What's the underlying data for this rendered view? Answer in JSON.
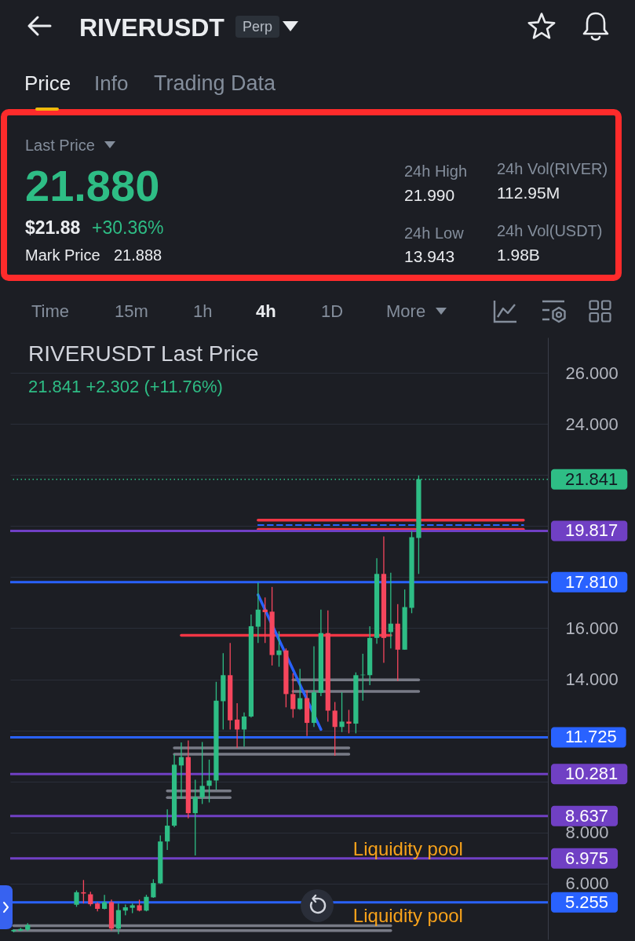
{
  "chart_data": [
    {
      "type": "other",
      "title": "RIVERUSDT",
      "annotations": [
        "Perp",
        "Price",
        "Info",
        "Trading Data",
        "Last Price",
        "21.880",
        "$21.88",
        "+30.36%",
        "Mark Price",
        "21.888",
        "24h High",
        "21.990",
        "24h Low",
        "13.943",
        "24h Vol(RIVER)",
        "112.95M",
        "24h Vol(USDT)",
        "1.98B",
        "Time",
        "15m",
        "1h",
        "4h",
        "1D",
        "More"
      ]
    },
    {
      "type": "candlestick",
      "title": "RIVERUSDT Last Price",
      "subtitle": "21.841  +2.302 (+11.76%)",
      "categories": [
        null,
        null,
        null,
        null,
        null,
        null,
        null,
        null,
        null,
        null,
        null,
        null,
        null,
        null,
        null,
        null,
        null,
        null,
        null,
        null,
        null,
        null,
        null,
        null,
        null,
        null,
        null,
        null,
        null,
        null,
        null,
        null,
        null,
        null,
        null,
        null,
        null,
        null,
        null,
        null,
        null,
        null,
        null,
        null,
        null,
        null,
        null,
        null,
        null,
        null,
        null,
        null,
        null,
        null,
        null,
        null,
        null,
        null,
        null,
        null,
        null,
        null,
        null,
        null,
        null,
        null,
        null,
        null,
        null,
        null,
        null,
        null,
        null,
        null,
        null,
        null,
        null
      ],
      "ohlc": [
        [
          4.12,
          4.2,
          4.08,
          4.17
        ],
        [
          4.15,
          4.25,
          4.12,
          4.21
        ],
        [
          4.18,
          4.44,
          4.13,
          4.36
        ],
        null,
        null,
        null,
        null,
        null,
        null,
        [
          5.16,
          5.72,
          5.08,
          5.65
        ],
        [
          5.65,
          6.13,
          5.21,
          5.6
        ],
        [
          5.57,
          5.67,
          5.11,
          5.18
        ],
        [
          5.21,
          5.26,
          4.9,
          5.0
        ],
        [
          5.0,
          5.55,
          4.98,
          5.26
        ],
        [
          5.26,
          5.36,
          4.15,
          4.22
        ],
        [
          4.22,
          5.21,
          4.01,
          4.95
        ],
        [
          4.93,
          5.17,
          4.75,
          5.06
        ],
        [
          5.04,
          5.21,
          4.83,
          5.14
        ],
        [
          5.14,
          5.36,
          4.9,
          4.93
        ],
        [
          4.93,
          5.55,
          4.9,
          5.47
        ],
        [
          5.45,
          6.16,
          5.43,
          6.01
        ],
        [
          6.0,
          7.88,
          5.98,
          7.64
        ],
        [
          7.64,
          8.9,
          7.31,
          8.26
        ],
        [
          8.26,
          11.06,
          8.2,
          10.65
        ],
        [
          10.62,
          11.52,
          9.31,
          10.95
        ],
        [
          10.95,
          11.6,
          8.55,
          8.75
        ],
        [
          8.75,
          10.06,
          7.09,
          9.38
        ],
        [
          9.37,
          11.54,
          9.11,
          9.82
        ],
        [
          9.82,
          10.85,
          9.17,
          10.03
        ],
        [
          10.03,
          13.9,
          9.67,
          13.16
        ],
        [
          13.14,
          15.02,
          12.03,
          14.16
        ],
        [
          14.16,
          15.42,
          12.03,
          12.39
        ],
        [
          12.42,
          13.06,
          11.31,
          12.03
        ],
        [
          12.03,
          12.7,
          11.36,
          12.54
        ],
        [
          12.54,
          16.54,
          12.5,
          16.08
        ],
        [
          16.06,
          17.79,
          15.42,
          16.73
        ],
        [
          16.73,
          17.21,
          15.42,
          16.63
        ],
        [
          16.65,
          17.62,
          14.54,
          14.95
        ],
        [
          14.95,
          15.88,
          14.49,
          15.13
        ],
        [
          15.13,
          15.21,
          12.9,
          13.42
        ],
        [
          13.42,
          14.24,
          12.49,
          12.83
        ],
        [
          12.83,
          14.41,
          12.8,
          13.26
        ],
        [
          13.26,
          13.57,
          11.78,
          12.29
        ],
        [
          12.29,
          15.29,
          12.13,
          13.49
        ],
        [
          13.47,
          16.73,
          13.34,
          15.81
        ],
        [
          15.81,
          16.7,
          12.34,
          12.77
        ],
        [
          12.77,
          13.11,
          11.0,
          12.13
        ],
        [
          12.13,
          13.49,
          11.93,
          12.34
        ],
        [
          12.34,
          12.8,
          11.88,
          12.26
        ],
        [
          12.26,
          14.27,
          11.88,
          14.16
        ],
        [
          14.16,
          15.0,
          13.16,
          14.18
        ],
        [
          14.16,
          16.08,
          13.77,
          15.62
        ],
        [
          15.62,
          18.75,
          15.39,
          18.13
        ],
        [
          18.13,
          19.6,
          14.65,
          15.62
        ],
        [
          15.85,
          18.18,
          15.21,
          16.18
        ],
        [
          16.18,
          16.95,
          13.94,
          15.16
        ],
        [
          15.16,
          17.52,
          15.16,
          16.83
        ],
        [
          16.8,
          19.81,
          16.59,
          19.57
        ],
        [
          19.54,
          21.99,
          18.13,
          21.841
        ],
        null,
        null,
        null,
        null,
        null,
        null,
        null,
        null,
        null,
        null,
        null,
        null,
        null,
        null,
        null,
        null,
        null,
        null
      ],
      "colors": [
        "#2ebd85",
        "#2ebd85",
        "#2ebd85",
        null,
        null,
        null,
        null,
        null,
        null,
        "#2ebd85",
        "#f6465d",
        "#f6465d",
        "#f6465d",
        "#2ebd85",
        "#f6465d",
        "#2ebd85",
        "#2ebd85",
        "#2ebd85",
        "#f6465d",
        "#2ebd85",
        "#2ebd85",
        "#2ebd85",
        "#2ebd85",
        "#2ebd85",
        "#2ebd85",
        "#f6465d",
        "#2ebd85",
        "#2ebd85",
        "#2ebd85",
        "#2ebd85",
        "#2ebd85",
        "#f6465d",
        "#f6465d",
        "#2ebd85",
        "#2ebd85",
        "#2ebd85",
        "#f6465d",
        "#f6465d",
        "#2ebd85",
        "#f6465d",
        "#f6465d",
        "#2ebd85",
        "#f6465d",
        "#2ebd85",
        "#2ebd85",
        "#f6465d",
        "#f6465d",
        "#2ebd85",
        "#f6465d",
        "#2ebd85",
        "#2ebd85",
        "#2ebd85",
        "#2ebd85",
        "#f6465d",
        "#2ebd85",
        "#f6465d",
        "#2ebd85",
        "#2ebd85",
        "#2ebd85",
        null,
        null,
        null,
        null,
        null,
        null,
        null,
        null,
        null,
        null,
        null,
        null,
        null,
        null,
        null,
        null,
        null,
        null
      ],
      "series": [
        {
          "type": "line",
          "color": "#787b86",
          "values": [
            4.34,
            4.34,
            4.34,
            4.34,
            4.34,
            4.34,
            4.34,
            4.34,
            4.34,
            4.34,
            4.34,
            4.34,
            4.34,
            4.34,
            4.34,
            4.34,
            4.34,
            4.34,
            4.34,
            4.34,
            4.34,
            4.34,
            4.34,
            4.34,
            4.34,
            4.34,
            4.34,
            4.34,
            4.34,
            4.34,
            4.34,
            4.34,
            4.34,
            4.34,
            4.34,
            4.34,
            4.34,
            4.34,
            4.34,
            4.34,
            4.34,
            4.34,
            4.34,
            4.34,
            4.34,
            4.34,
            4.34,
            4.34,
            4.34,
            4.34,
            4.34,
            4.34,
            4.34,
            4.34,
            4.34,
            null,
            null,
            null,
            null,
            null,
            null,
            null,
            null,
            null,
            null,
            null,
            null,
            null,
            null,
            null,
            null,
            null,
            null,
            null,
            null,
            null,
            null
          ]
        },
        {
          "type": "line",
          "color": "#787b86",
          "values": [
            4.15,
            4.15,
            4.15,
            4.15,
            4.15,
            4.15,
            4.15,
            4.15,
            4.15,
            4.15,
            4.15,
            4.15,
            4.15,
            4.15,
            4.15,
            4.15,
            4.15,
            4.15,
            4.15,
            4.15,
            4.15,
            4.15,
            4.15,
            4.15,
            4.15,
            4.15,
            4.15,
            4.15,
            4.15,
            4.15,
            4.15,
            4.15,
            4.15,
            4.15,
            4.15,
            4.15,
            4.15,
            4.15,
            4.15,
            4.15,
            4.15,
            4.15,
            4.15,
            4.15,
            4.15,
            4.15,
            4.15,
            4.15,
            4.15,
            4.15,
            4.15,
            4.15,
            4.15,
            4.15,
            4.15,
            null,
            null,
            null,
            null,
            null,
            null,
            null,
            null,
            null,
            null,
            null,
            null,
            null,
            null,
            null,
            null,
            null,
            null,
            null,
            null,
            null,
            null
          ]
        },
        {
          "type": "line",
          "color": "#787b86",
          "values": [
            null,
            null,
            null,
            null,
            null,
            null,
            null,
            null,
            null,
            null,
            null,
            null,
            null,
            null,
            null,
            null,
            null,
            null,
            null,
            null,
            null,
            null,
            9.62,
            9.62,
            9.62,
            9.62,
            9.62,
            9.62,
            9.62,
            9.62,
            9.62,
            9.62,
            null,
            null,
            null,
            null,
            null,
            null,
            null,
            null,
            null,
            null,
            null,
            null,
            null,
            null,
            null,
            null,
            null,
            null,
            null,
            null,
            null,
            null,
            null,
            null,
            null,
            null,
            null,
            null,
            null,
            null,
            null,
            null,
            null,
            null,
            null,
            null,
            null,
            null,
            null,
            null,
            null,
            null,
            null,
            null,
            null
          ]
        },
        {
          "type": "line",
          "color": "#787b86",
          "values": [
            null,
            null,
            null,
            null,
            null,
            null,
            null,
            null,
            null,
            null,
            null,
            null,
            null,
            null,
            null,
            null,
            null,
            null,
            null,
            null,
            null,
            null,
            9.36,
            9.36,
            9.36,
            9.36,
            9.36,
            9.36,
            9.36,
            9.36,
            9.36,
            9.36,
            null,
            null,
            null,
            null,
            null,
            null,
            null,
            null,
            null,
            null,
            null,
            null,
            null,
            null,
            null,
            null,
            null,
            null,
            null,
            null,
            null,
            null,
            null,
            null,
            null,
            null,
            null,
            null,
            null,
            null,
            null,
            null,
            null,
            null,
            null,
            null,
            null,
            null,
            null,
            null,
            null,
            null,
            null,
            null,
            null
          ]
        },
        {
          "type": "line",
          "color": "#787b86",
          "values": [
            null,
            null,
            null,
            null,
            null,
            null,
            null,
            null,
            null,
            null,
            null,
            null,
            null,
            null,
            null,
            null,
            null,
            null,
            null,
            null,
            null,
            null,
            null,
            11.31,
            11.31,
            11.31,
            11.31,
            11.31,
            11.31,
            11.31,
            11.31,
            11.31,
            11.31,
            11.31,
            11.31,
            11.31,
            11.31,
            11.31,
            11.31,
            11.31,
            11.31,
            11.31,
            11.31,
            11.31,
            11.31,
            11.31,
            11.31,
            11.31,
            11.31,
            null,
            null,
            null,
            null,
            null,
            null,
            null,
            null,
            null,
            null,
            null,
            null,
            null,
            null,
            null,
            null,
            null,
            null,
            null,
            null,
            null,
            null,
            null,
            null,
            null,
            null,
            null,
            null
          ]
        },
        {
          "type": "line",
          "color": "#787b86",
          "values": [
            null,
            null,
            null,
            null,
            null,
            null,
            null,
            null,
            null,
            null,
            null,
            null,
            null,
            null,
            null,
            null,
            null,
            null,
            null,
            null,
            null,
            null,
            null,
            11.06,
            11.06,
            11.06,
            11.06,
            11.06,
            11.06,
            11.06,
            11.06,
            11.06,
            11.06,
            11.06,
            11.06,
            11.06,
            11.06,
            11.06,
            11.06,
            11.06,
            11.06,
            11.06,
            11.06,
            11.06,
            11.06,
            11.06,
            11.06,
            11.06,
            11.06,
            null,
            null,
            null,
            null,
            null,
            null,
            null,
            null,
            null,
            null,
            null,
            null,
            null,
            null,
            null,
            null,
            null,
            null,
            null,
            null,
            null,
            null,
            null,
            null,
            null,
            null,
            null,
            null
          ]
        },
        {
          "type": "line",
          "color": "#787b86",
          "values": [
            null,
            null,
            null,
            null,
            null,
            null,
            null,
            null,
            null,
            null,
            null,
            null,
            null,
            null,
            null,
            null,
            null,
            null,
            null,
            null,
            null,
            null,
            null,
            null,
            null,
            null,
            null,
            null,
            null,
            null,
            null,
            null,
            null,
            null,
            null,
            null,
            null,
            null,
            null,
            null,
            13.98,
            13.98,
            13.98,
            13.98,
            13.98,
            13.98,
            13.98,
            13.98,
            13.98,
            13.98,
            13.98,
            13.98,
            13.98,
            13.98,
            13.98,
            13.98,
            13.98,
            13.98,
            13.98,
            null,
            null,
            null,
            null,
            null,
            null,
            null,
            null,
            null,
            null,
            null,
            null,
            null,
            null,
            null,
            null,
            null,
            null
          ]
        },
        {
          "type": "line",
          "color": "#787b86",
          "values": [
            null,
            null,
            null,
            null,
            null,
            null,
            null,
            null,
            null,
            null,
            null,
            null,
            null,
            null,
            null,
            null,
            null,
            null,
            null,
            null,
            null,
            null,
            null,
            null,
            null,
            null,
            null,
            null,
            null,
            null,
            null,
            null,
            null,
            null,
            null,
            null,
            null,
            null,
            null,
            null,
            13.52,
            13.52,
            13.52,
            13.52,
            13.52,
            13.52,
            13.52,
            13.52,
            13.52,
            13.52,
            13.52,
            13.52,
            13.52,
            13.52,
            13.52,
            13.52,
            13.52,
            13.52,
            13.52,
            null,
            null,
            null,
            null,
            null,
            null,
            null,
            null,
            null,
            null,
            null,
            null,
            null,
            null,
            null,
            null,
            null,
            null
          ]
        },
        {
          "type": "line",
          "color": "#f23645",
          "values": [
            null,
            null,
            null,
            null,
            null,
            null,
            null,
            null,
            null,
            null,
            null,
            null,
            null,
            null,
            null,
            null,
            null,
            null,
            null,
            null,
            null,
            null,
            null,
            null,
            15.72,
            15.72,
            15.72,
            15.72,
            15.72,
            15.72,
            15.72,
            15.72,
            15.72,
            15.72,
            15.72,
            15.72,
            15.72,
            15.72,
            15.72,
            15.72,
            15.72,
            15.72,
            15.72,
            15.72,
            15.72,
            15.72,
            15.72,
            15.72,
            15.72,
            15.72,
            15.72,
            15.72,
            15.72,
            15.72,
            15.72,
            null,
            null,
            null,
            null,
            null,
            null,
            null,
            null,
            null,
            null,
            null,
            null,
            null,
            null,
            null,
            null,
            null,
            null,
            null,
            null,
            null,
            null
          ]
        },
        {
          "type": "line",
          "color": "#2962ff",
          "values": [
            null,
            null,
            null,
            null,
            null,
            null,
            null,
            null,
            null,
            null,
            null,
            null,
            null,
            null,
            null,
            null,
            null,
            null,
            null,
            null,
            null,
            null,
            null,
            null,
            null,
            null,
            null,
            null,
            null,
            null,
            null,
            null,
            null,
            null,
            null,
            17.31,
            null,
            null,
            null,
            null,
            null,
            null,
            null,
            null,
            12.03,
            null,
            null,
            null,
            null,
            null,
            null,
            null,
            null,
            null,
            null,
            null,
            null,
            null,
            null,
            null,
            null,
            null,
            null,
            null,
            null,
            null,
            null,
            null,
            null,
            null,
            null,
            null,
            null,
            null,
            null,
            null,
            null
          ]
        },
        {
          "type": "line",
          "color": "#f23645",
          "values": [
            null,
            null,
            null,
            null,
            null,
            null,
            null,
            null,
            null,
            null,
            null,
            null,
            null,
            null,
            null,
            null,
            null,
            null,
            null,
            null,
            null,
            null,
            null,
            null,
            null,
            null,
            null,
            null,
            null,
            null,
            null,
            null,
            null,
            null,
            null,
            20.24,
            20.24,
            20.24,
            20.24,
            20.24,
            20.24,
            20.24,
            20.24,
            20.24,
            20.24,
            20.24,
            20.24,
            20.24,
            20.24,
            20.24,
            20.24,
            20.24,
            20.24,
            20.24,
            20.24,
            20.24,
            20.24,
            20.24,
            20.24,
            20.24,
            20.24,
            20.24,
            20.24,
            20.24,
            20.24,
            20.24,
            20.24,
            20.24,
            20.24,
            20.24,
            20.24,
            20.24,
            20.24,
            20.24,
            null,
            null,
            null
          ]
        },
        {
          "type": "line",
          "color": "#f23645",
          "values": [
            null,
            null,
            null,
            null,
            null,
            null,
            null,
            null,
            null,
            null,
            null,
            null,
            null,
            null,
            null,
            null,
            null,
            null,
            null,
            null,
            null,
            null,
            null,
            null,
            null,
            null,
            null,
            null,
            null,
            null,
            null,
            null,
            null,
            null,
            null,
            19.88,
            19.88,
            19.88,
            19.88,
            19.88,
            19.88,
            19.88,
            19.88,
            19.88,
            19.88,
            19.88,
            19.88,
            19.88,
            19.88,
            19.88,
            19.88,
            19.88,
            19.88,
            19.88,
            19.88,
            19.88,
            19.88,
            19.88,
            19.88,
            19.88,
            19.88,
            19.88,
            19.88,
            19.88,
            19.88,
            19.88,
            19.88,
            19.88,
            19.88,
            19.88,
            19.88,
            19.88,
            19.88,
            19.88,
            null,
            null,
            null
          ]
        },
        {
          "type": "line",
          "color": "#2962ff",
          "line_style": "dashed",
          "values": [
            null,
            null,
            null,
            null,
            null,
            null,
            null,
            null,
            null,
            null,
            null,
            null,
            null,
            null,
            null,
            null,
            null,
            null,
            null,
            null,
            null,
            null,
            null,
            null,
            null,
            null,
            null,
            null,
            null,
            null,
            null,
            null,
            null,
            null,
            null,
            20.05,
            20.05,
            20.05,
            20.05,
            20.05,
            20.05,
            20.05,
            20.05,
            20.05,
            20.05,
            20.05,
            20.05,
            20.05,
            20.05,
            20.05,
            20.05,
            20.05,
            20.05,
            20.05,
            20.05,
            20.05,
            20.05,
            20.05,
            20.05,
            20.05,
            20.05,
            20.05,
            20.05,
            20.05,
            20.05,
            20.05,
            20.05,
            20.05,
            20.05,
            20.05,
            20.05,
            20.05,
            20.05,
            20.05,
            null,
            null,
            null
          ]
        }
      ],
      "ref_lines": [
        {
          "axis": "y",
          "value": 21.841,
          "label": "21.841",
          "color": "#2ebd85",
          "line_style": "dotted"
        },
        {
          "axis": "y",
          "value": 19.817,
          "label": "19.817",
          "color": "#7040c4"
        },
        {
          "axis": "y",
          "value": 17.81,
          "label": "17.810",
          "color": "#2962ff"
        },
        {
          "axis": "y",
          "value": 11.725,
          "label": "11.725",
          "color": "#2962ff"
        },
        {
          "axis": "y",
          "value": 10.281,
          "label": "10.281",
          "color": "#7040c4"
        },
        {
          "axis": "y",
          "value": 8.637,
          "label": "8.637",
          "color": "#7040c4"
        },
        {
          "axis": "y",
          "value": 6.975,
          "label": "6.975",
          "color": "#7040c4"
        },
        {
          "axis": "y",
          "value": 5.255,
          "label": "5.255",
          "color": "#2962ff"
        }
      ],
      "annotations": [
        "Liquidity pool",
        "Liquidity pool"
      ],
      "ylim": [
        3.8,
        27.4
      ],
      "yticks": [
        {
          "value": 6,
          "label": "6.000"
        },
        {
          "value": 8,
          "label": "8.000"
        },
        {
          "value": 10,
          "label": null
        },
        {
          "value": 12,
          "label": null
        },
        {
          "value": 14,
          "label": "14.000"
        },
        {
          "value": 16,
          "label": "16.000"
        },
        {
          "value": 18,
          "label": null
        },
        {
          "value": 20,
          "label": null
        },
        {
          "value": 22,
          "label": null
        },
        {
          "value": 24,
          "label": "24.000"
        },
        {
          "value": 26,
          "label": "26.000"
        }
      ],
      "grid": "y",
      "tick_labels": "y"
    }
  ]
}
